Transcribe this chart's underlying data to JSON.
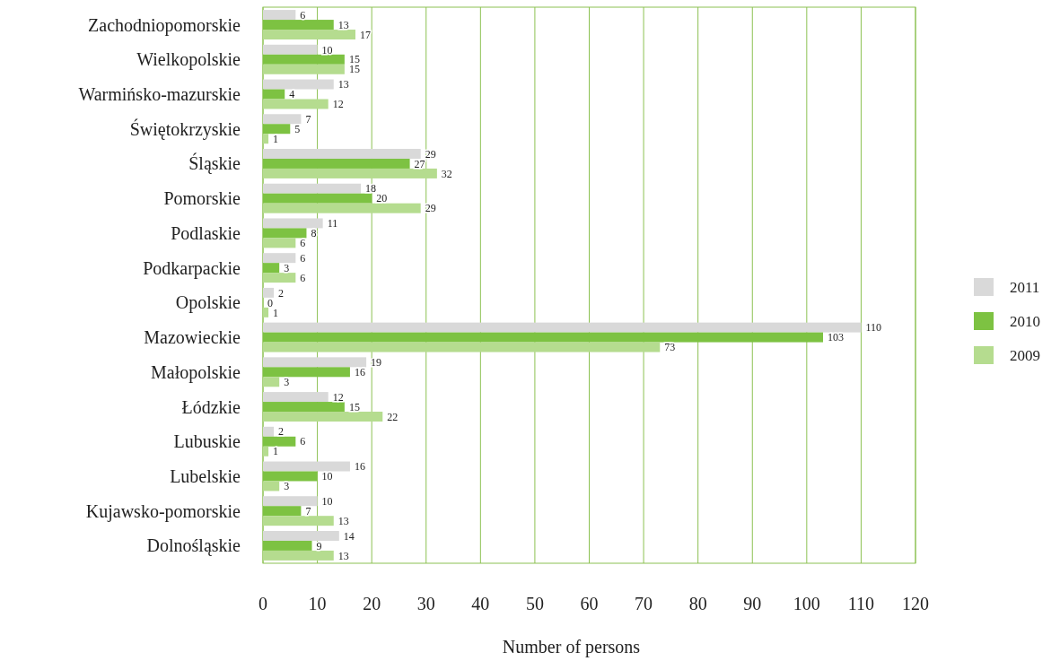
{
  "chart_data": {
    "type": "bar",
    "orientation": "horizontal",
    "xlabel": "Number of persons",
    "categories": [
      "Zachodniopomorskie",
      "Wielkopolskie",
      "Warmińsko-mazurskie",
      "Świętokrzyskie",
      "Śląskie",
      "Pomorskie",
      "Podlaskie",
      "Podkarpackie",
      "Opolskie",
      "Mazowieckie",
      "Małopolskie",
      "Łódzkie",
      "Lubuskie",
      "Lubelskie",
      "Kujawsko-pomorskie",
      "Dolnośląskie"
    ],
    "series": [
      {
        "name": "2011",
        "color": "#d9d9d9",
        "values": [
          6,
          10,
          13,
          7,
          29,
          18,
          11,
          6,
          2,
          110,
          19,
          12,
          2,
          16,
          10,
          14
        ]
      },
      {
        "name": "2010",
        "color": "#7dc242",
        "values": [
          13,
          15,
          4,
          5,
          27,
          20,
          8,
          3,
          0,
          103,
          16,
          15,
          6,
          10,
          7,
          9
        ]
      },
      {
        "name": "2009",
        "color": "#b5dc8f",
        "values": [
          17,
          15,
          12,
          1,
          32,
          29,
          6,
          6,
          1,
          73,
          3,
          22,
          1,
          3,
          13,
          13
        ]
      }
    ],
    "xlim": [
      0,
      120
    ],
    "xticks": [
      0,
      10,
      20,
      30,
      40,
      50,
      60,
      70,
      80,
      90,
      100,
      110,
      120
    ],
    "grid": "x",
    "legend": "right",
    "data_labels": true
  }
}
